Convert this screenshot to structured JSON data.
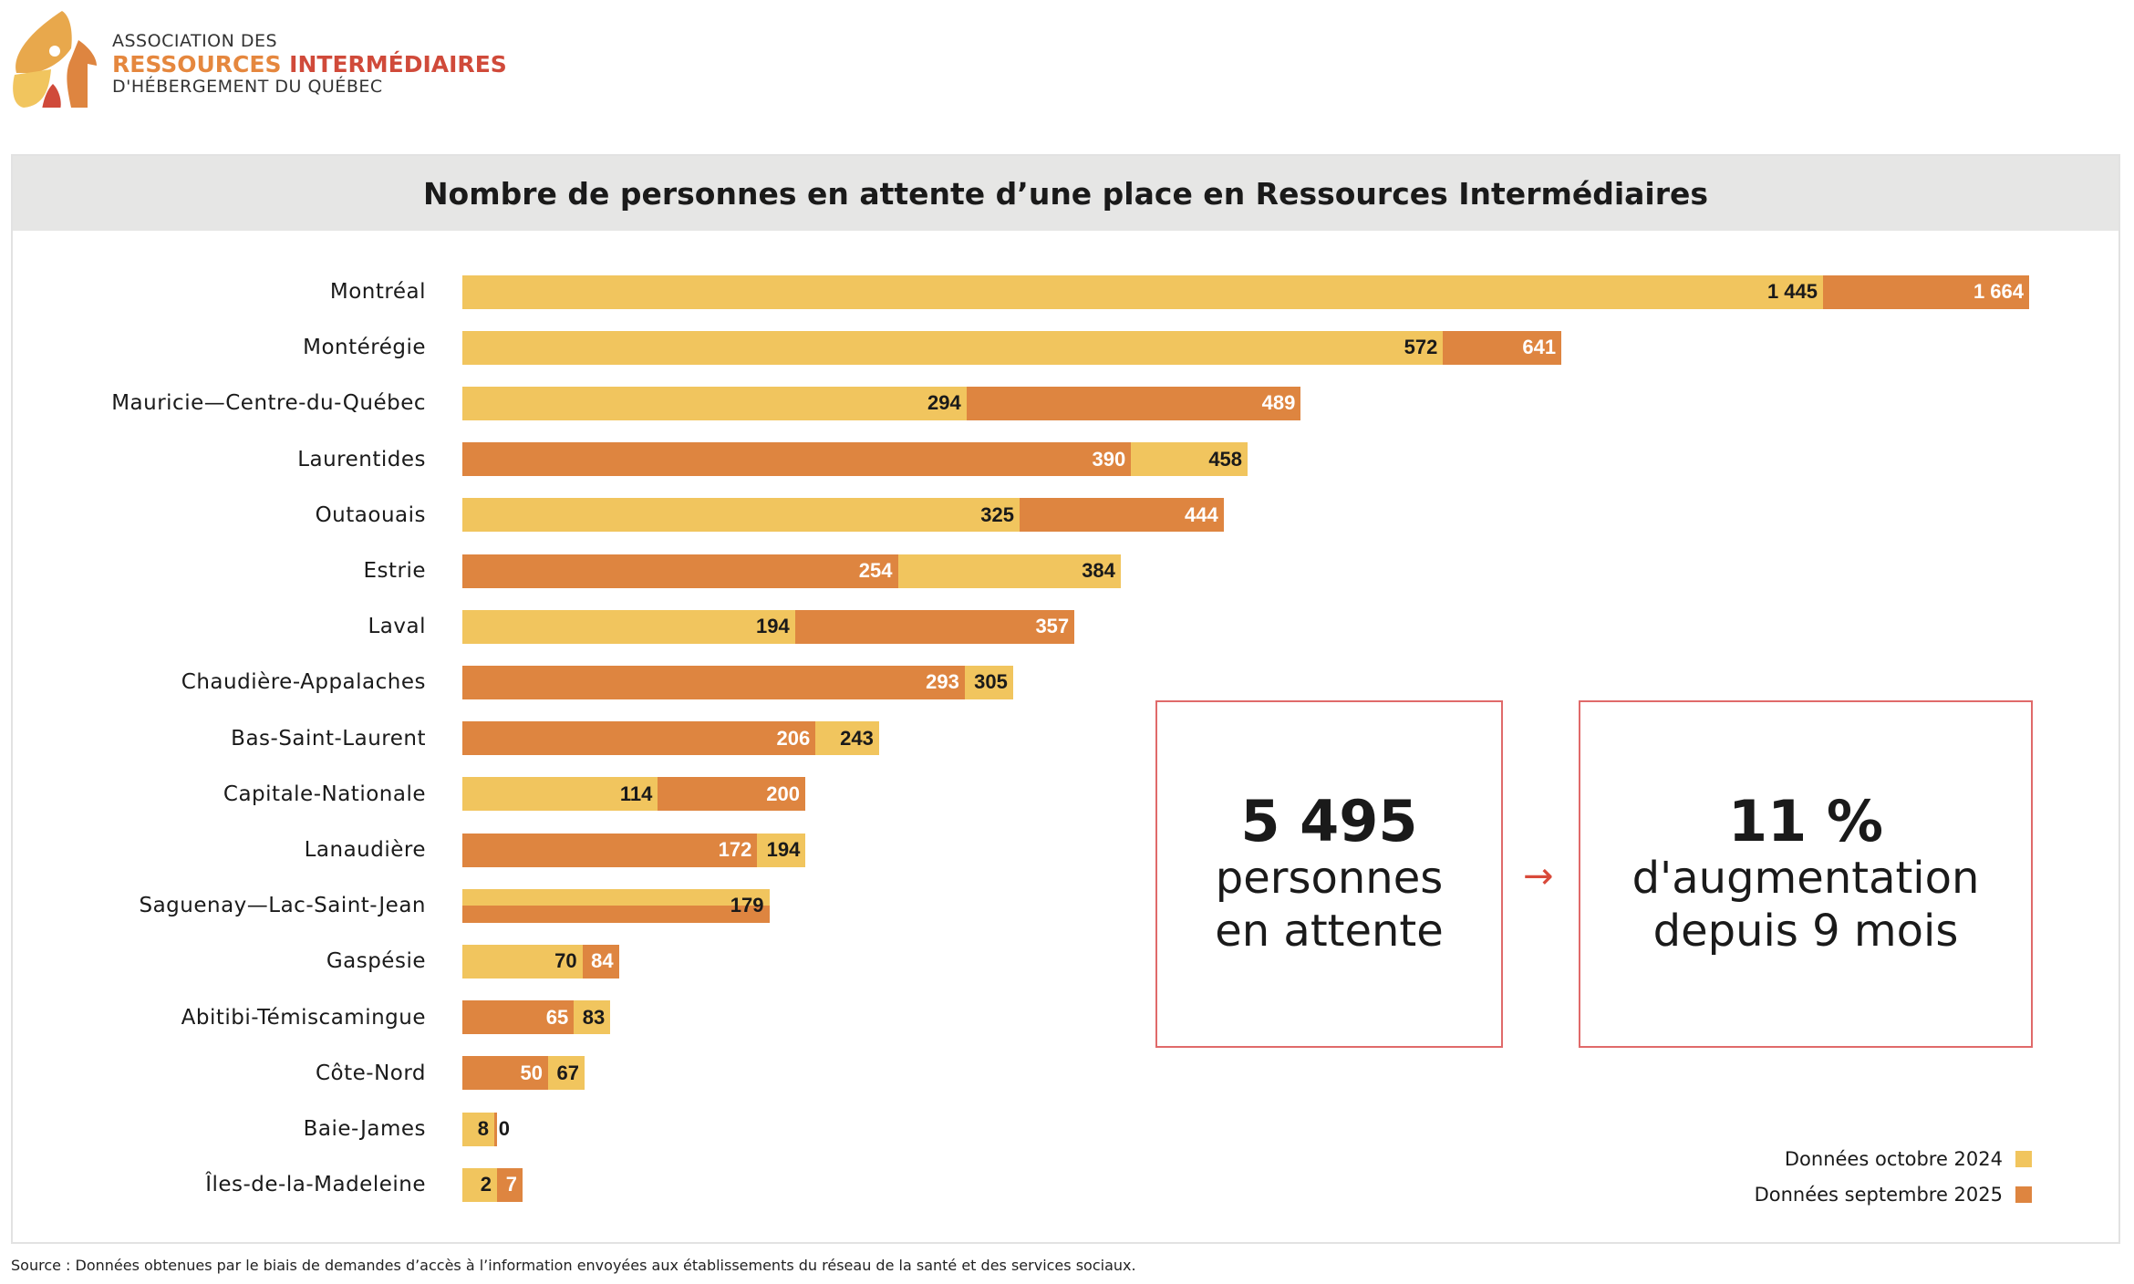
{
  "header": {
    "logo": {
      "line1": "ASSOCIATION DES",
      "line2a": "RESSOURCES",
      "line2b": "INTERMÉDIAIRES",
      "line3": "D'HÉBERGEMENT DU QUÉBEC"
    }
  },
  "chart_data": {
    "type": "bar",
    "orientation": "horizontal",
    "title": "Nombre de personnes en attente d’une place en Ressources Intermédiaires",
    "categories": [
      "Montréal",
      "Montérégie",
      "Mauricie—Centre-du-Québec",
      "Laurentides",
      "Outaouais",
      "Estrie",
      "Laval",
      "Chaudière-Appalaches",
      "Bas-Saint-Laurent",
      "Capitale-Nationale",
      "Lanaudière",
      "Saguenay—Lac-Saint-Jean",
      "Gaspésie",
      "Abitibi-Témiscamingue",
      "Côte-Nord",
      "Baie-James",
      "Îles-de-la-Madeleine"
    ],
    "series": [
      {
        "name": "Données octobre 2024",
        "color": "#F1C55E",
        "values": [
          1445,
          572,
          294,
          458,
          325,
          384,
          194,
          305,
          243,
          114,
          194,
          179,
          70,
          83,
          67,
          8,
          2
        ],
        "labels": [
          "1 445",
          "572",
          "294",
          "458",
          "325",
          "384",
          "194",
          "305",
          "243",
          "114",
          "194",
          "179",
          "70",
          "83",
          "67",
          "8",
          "2"
        ]
      },
      {
        "name": "Données septembre 2025",
        "color": "#DE8540",
        "values": [
          1664,
          641,
          489,
          390,
          444,
          254,
          357,
          293,
          206,
          200,
          172,
          179,
          84,
          65,
          50,
          0,
          7
        ],
        "labels": [
          "1 664",
          "641",
          "489",
          "390",
          "444",
          "254",
          "357",
          "293",
          "206",
          "200",
          "172",
          "",
          "84",
          "65",
          "50",
          "0",
          "7"
        ]
      }
    ],
    "legend": "bottom-right",
    "grid": false
  },
  "kpis": [
    {
      "value": "5 495",
      "line1": "personnes",
      "line2": "en attente"
    },
    {
      "value": "11 %",
      "line1": "d'augmentation",
      "line2": "depuis 9 mois"
    }
  ],
  "arrow_icon": "arrow-right-icon",
  "source": "Source : Données obtenues par le biais de demandes d’accès à l’information envoyées aux établissements du réseau de la santé et des services sociaux."
}
